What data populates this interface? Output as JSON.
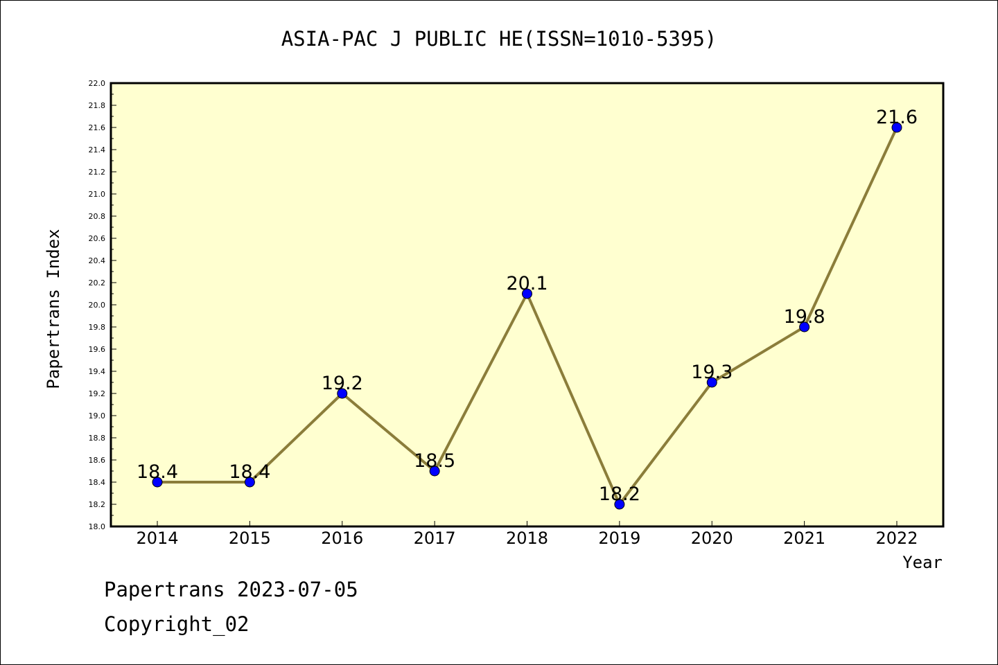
{
  "chart_data": {
    "type": "line",
    "title": "ASIA-PAC J PUBLIC HE(ISSN=1010-5395)",
    "xlabel": "Year",
    "ylabel": "Papertrans Index",
    "categories": [
      "2014",
      "2015",
      "2016",
      "2017",
      "2018",
      "2019",
      "2020",
      "2021",
      "2022"
    ],
    "values": [
      18.4,
      18.4,
      19.2,
      18.5,
      20.1,
      18.2,
      19.3,
      19.8,
      21.6
    ],
    "data_labels": [
      "18.4",
      "18.4",
      "19.2",
      "18.5",
      "20.1",
      "18.2",
      "19.3",
      "19.8",
      "21.6"
    ],
    "ylim": [
      18.0,
      22.0
    ],
    "yticks": [
      "18.0",
      "18.2",
      "18.4",
      "18.6",
      "18.8",
      "19.0",
      "19.2",
      "19.4",
      "19.6",
      "19.8",
      "20.0",
      "20.2",
      "20.4",
      "20.6",
      "20.8",
      "21.0",
      "21.2",
      "21.4",
      "21.6",
      "21.8",
      "22.0"
    ],
    "grid": false,
    "colors": {
      "plot_background": "#FFFFD0",
      "line": "#8B7D3A",
      "marker_fill": "#0000FF"
    }
  },
  "footer": {
    "line1": "Papertrans 2023-07-05",
    "line2": "Copyright_02"
  }
}
